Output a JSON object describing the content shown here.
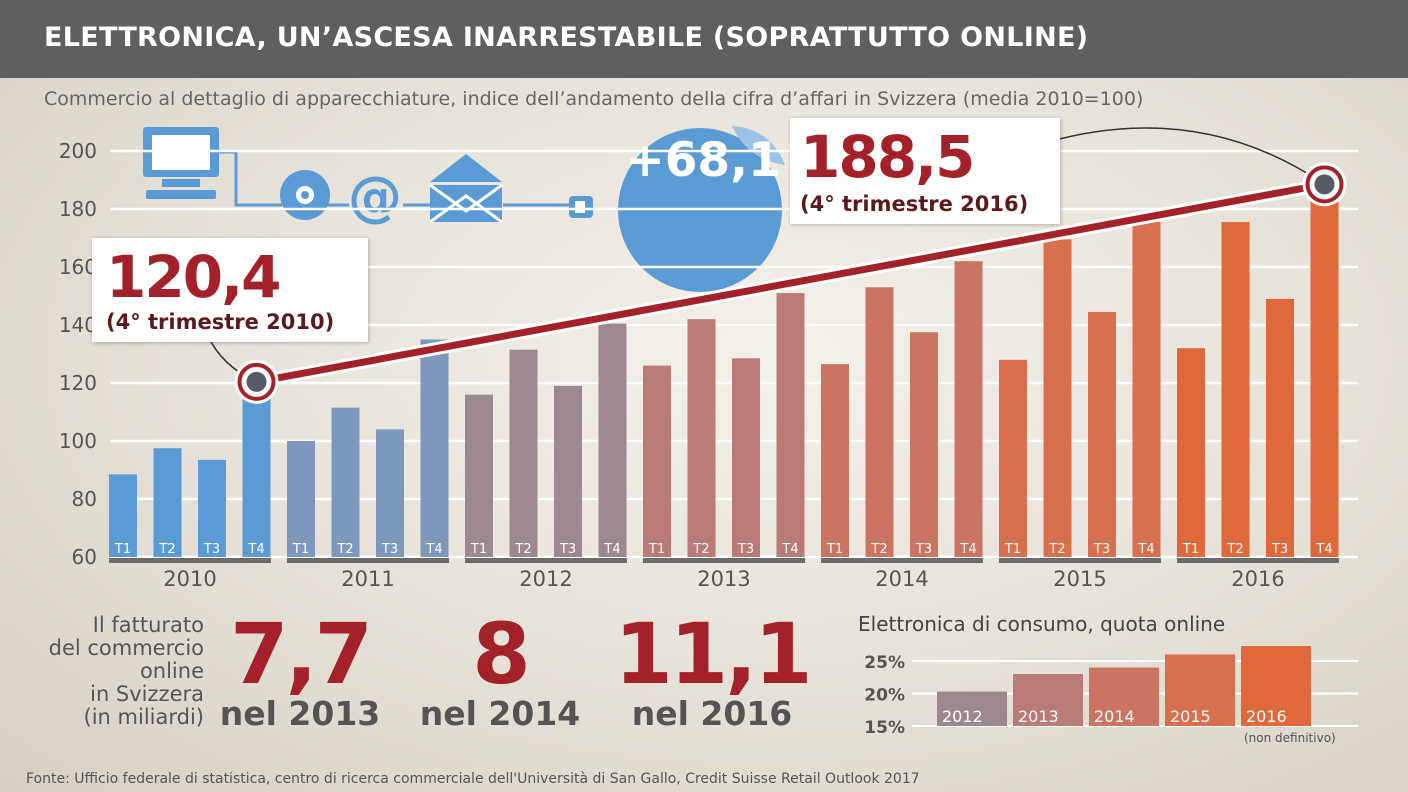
{
  "header": {
    "title": "ELETTRONICA, UN’ASCESA INARRESTABILE (SOPRATTUTTO ONLINE)",
    "subtitle": "Commercio al dettaglio di apparecchiature, indice dell’andamento della cifra d’affari in Svizzera (media 2010=100)"
  },
  "callouts": {
    "start": {
      "value": "120,4",
      "note": "(4° trimestre 2010)"
    },
    "end": {
      "value": "188,5",
      "note": "(4° trimestre 2016)"
    },
    "growth": "+68,1"
  },
  "icons": [
    "computer-icon",
    "disc-icon",
    "at-sign-icon",
    "envelope-icon",
    "plug-icon"
  ],
  "online": {
    "label_lines": [
      "Il fatturato",
      "del commercio",
      "online",
      "in Svizzera",
      "(in miliardi)"
    ],
    "stats": [
      {
        "value": "7,7",
        "year": "nel 2013"
      },
      {
        "value": "8",
        "year": "nel 2014"
      },
      {
        "value": "11,1",
        "year": "nel 2016"
      }
    ]
  },
  "source": "Fonte: Ufficio federale di statistica, centro di ricerca commerciale dell'Università di San Gallo, Credit Suisse Retail Outlook 2017",
  "chart_data": [
    {
      "type": "bar",
      "title": "ELETTRONICA, UN’ASCESA INARRESTABILE (SOPRATTUTTO ONLINE)",
      "subtitle": "Commercio al dettaglio di apparecchiature, indice dell’andamento della cifra d’affari in Svizzera (media 2010=100)",
      "ylim": [
        60,
        200
      ],
      "yticks": [
        60,
        80,
        100,
        120,
        140,
        160,
        180,
        200
      ],
      "grid": true,
      "years": [
        "2010",
        "2011",
        "2012",
        "2013",
        "2014",
        "2015",
        "2016"
      ],
      "quarters": [
        "T1",
        "T2",
        "T3",
        "T4"
      ],
      "year_colors": [
        "#5b9bd5",
        "#7e98bd",
        "#9d8892",
        "#b97a78",
        "#cb7462",
        "#d8704e",
        "#e0693c"
      ],
      "values": [
        [
          88.5,
          97.5,
          93.5,
          120.4
        ],
        [
          100,
          111.5,
          104,
          135
        ],
        [
          116,
          131.5,
          119,
          140.5
        ],
        [
          126,
          142,
          128.5,
          151
        ],
        [
          126.5,
          153,
          137.5,
          162
        ],
        [
          128,
          169.5,
          144.5,
          175.5
        ],
        [
          132,
          175.5,
          149,
          188.5
        ]
      ],
      "trend": {
        "from": 120.4,
        "to": 188.5,
        "change": "+68,1"
      }
    },
    {
      "type": "bar",
      "title": "Elettronica di consumo, quota online",
      "categories": [
        "2012",
        "2013",
        "2014",
        "2015",
        "2016"
      ],
      "values": [
        20.3,
        23,
        24,
        26,
        27.3
      ],
      "yticks": [
        "15%",
        "20%",
        "25%"
      ],
      "ylim": [
        15,
        25
      ],
      "note": "(non definitivo)"
    }
  ]
}
